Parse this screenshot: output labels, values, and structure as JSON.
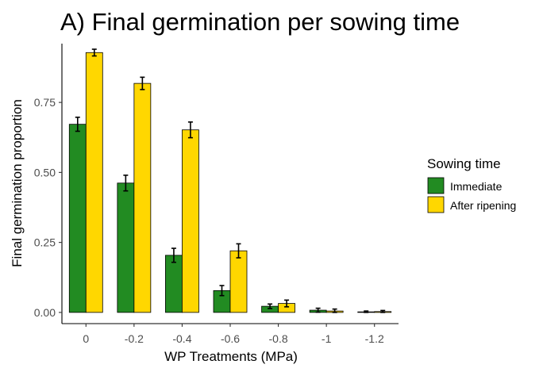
{
  "chart_data": {
    "type": "bar",
    "title": "A) Final germination per sowing time",
    "xlabel": "WP Treatments (MPa)",
    "ylabel": "Final germination proportion",
    "categories": [
      "0",
      "-0.2",
      "-0.4",
      "-0.6",
      "-0.8",
      "-1",
      "-1.2"
    ],
    "ylim": [
      -0.04,
      0.96
    ],
    "yticks": [
      "0.00",
      "0.25",
      "0.50",
      "0.75"
    ],
    "ytick_values": [
      0,
      0.25,
      0.5,
      0.75
    ],
    "legend": {
      "title": "Sowing time",
      "placement": "right"
    },
    "grid": false,
    "series": [
      {
        "name": "Immediate",
        "color": "#228B22",
        "values": [
          0.672,
          0.462,
          0.204,
          0.078,
          0.022,
          0.008,
          0.002
        ],
        "errors": [
          0.025,
          0.028,
          0.025,
          0.018,
          0.008,
          0.007,
          0.003
        ]
      },
      {
        "name": "After ripening",
        "color": "#FFD700",
        "values": [
          0.928,
          0.818,
          0.652,
          0.22,
          0.032,
          0.005,
          0.003
        ],
        "errors": [
          0.012,
          0.022,
          0.028,
          0.025,
          0.012,
          0.007,
          0.004
        ]
      }
    ]
  }
}
